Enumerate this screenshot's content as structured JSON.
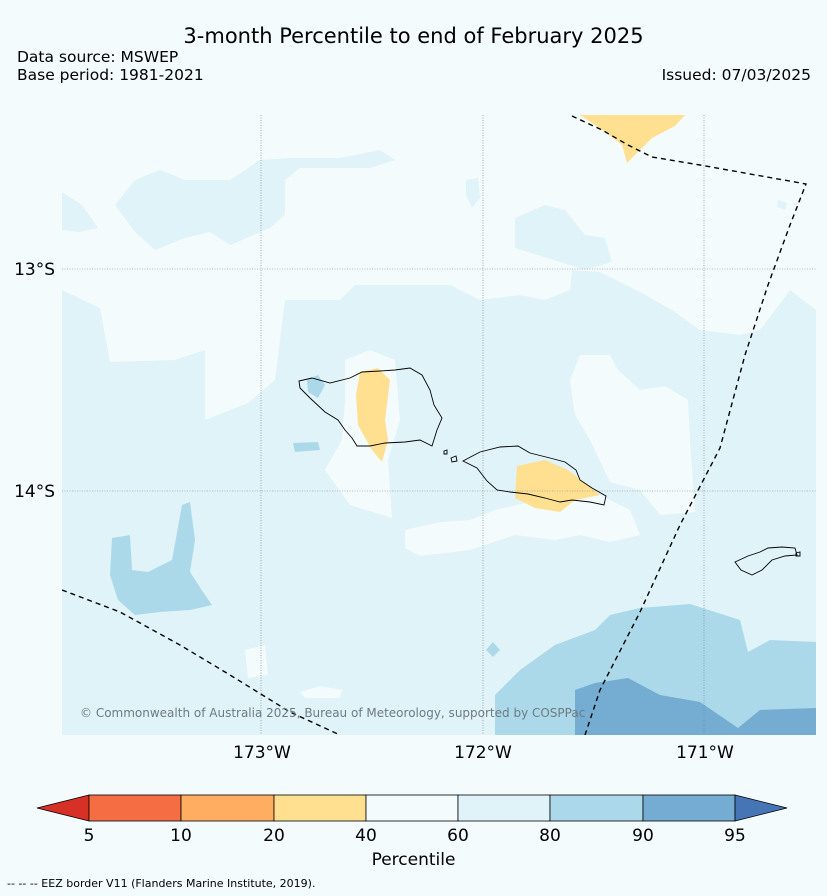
{
  "header": {
    "title": "3-month Percentile to end of February 2025",
    "data_source": "Data source: MSWEP",
    "base_period": "Base period: 1981-2021",
    "issued": "Issued: 07/03/2025"
  },
  "map": {
    "lat_labels": [
      "13°S",
      "14°S"
    ],
    "lon_labels": [
      "173°W",
      "172°W",
      "171°W"
    ],
    "copyright": "© Commonwealth of Australia 2025, Bureau of Meteorology, supported by COSPPac",
    "colors": {
      "ocean_base": "#f4fbfd",
      "p60_80": "#e0f3f8",
      "p80_90": "#abd9e9",
      "p90_95": "#74add1",
      "p20_40": "#fee090",
      "land_outline": "#000000",
      "eez": "#000000"
    }
  },
  "colorbar": {
    "label": "Percentile",
    "ticks": [
      "5",
      "10",
      "20",
      "40",
      "60",
      "80",
      "90",
      "95"
    ],
    "colors": [
      "#d73027",
      "#f46d43",
      "#fdae61",
      "#fee090",
      "#f4fbfd",
      "#e0f3f8",
      "#abd9e9",
      "#74add1",
      "#4575b4"
    ]
  },
  "footnote": "--  --  -- EEZ border V11 (Flanders Marine Institute, 2019)."
}
